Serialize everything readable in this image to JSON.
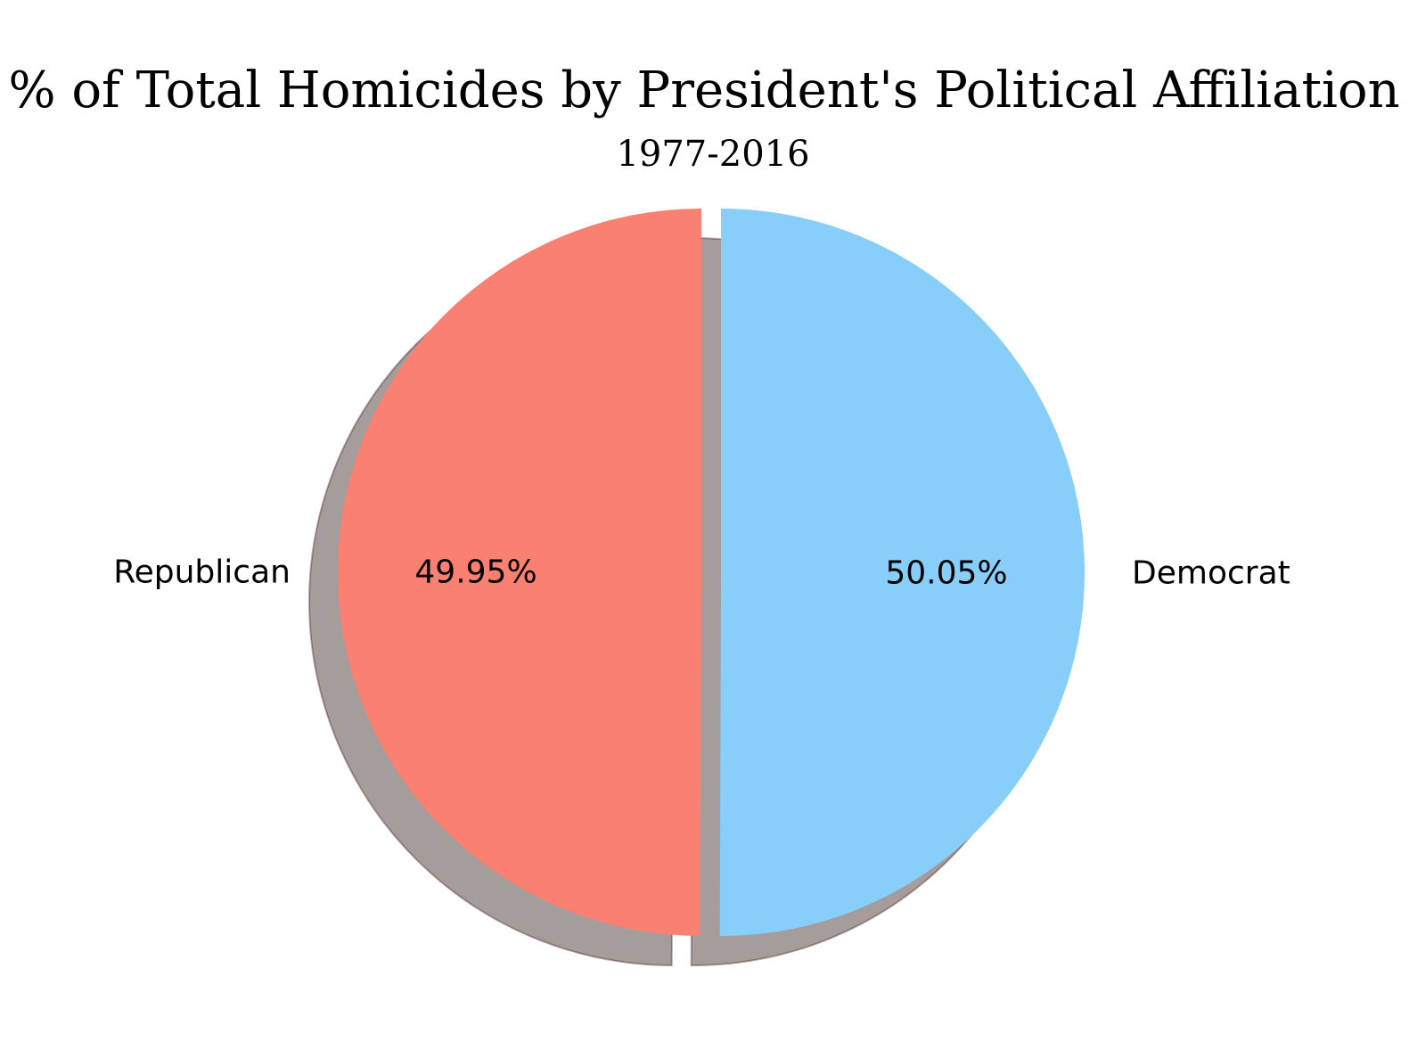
{
  "chart_data": {
    "type": "pie",
    "title": "% of Total Homicides by President's Political Affiliation",
    "subtitle": "1977-2016",
    "slices": [
      {
        "label": "Republican",
        "value": 49.95,
        "pct_label": "49.95%",
        "color": "#fa8072",
        "exploded": true
      },
      {
        "label": "Democrat",
        "value": 50.05,
        "pct_label": "50.05%",
        "color": "#87cefa",
        "exploded": true
      }
    ],
    "start_angle_deg": 90,
    "direction": "counterclockwise",
    "shadow": true
  }
}
